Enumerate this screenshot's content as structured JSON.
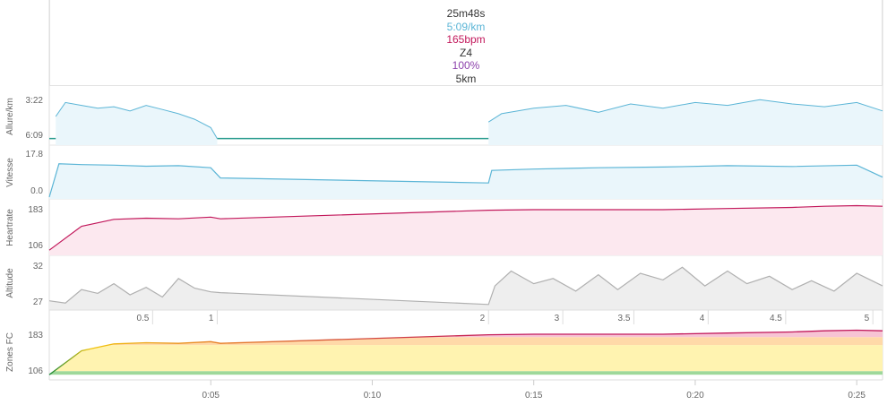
{
  "summary": {
    "duration": "25m48s",
    "pace": "5:09/km",
    "heartrate": "165bpm",
    "zone": "Z4",
    "percent": "100%",
    "distance": "5km"
  },
  "colors": {
    "pace": "#5bb5d6",
    "speed": "#5bb5d6",
    "heartrate": "#c2185b",
    "altitude": "#b0b0b0",
    "percent": "#8e44ad",
    "zone_line": "#c2185b",
    "grid": "#e5e5e5"
  },
  "chart_data": [
    {
      "type": "line",
      "ylabel": "Allure/km",
      "yticks": [
        "3:22",
        "6:09"
      ],
      "x_unit": "minutes",
      "segments": [
        {
          "x": [
            0.2,
            0.5,
            1,
            1.5,
            2,
            2.5,
            3,
            3.5,
            4,
            4.5,
            5,
            5.2
          ],
          "y": [
            290,
            240,
            250,
            260,
            255,
            270,
            250,
            265,
            280,
            300,
            330,
            369
          ]
        },
        {
          "x": [
            13.6,
            14,
            15,
            16,
            17,
            18,
            19,
            20,
            21,
            22,
            23,
            24,
            25,
            25.8
          ],
          "y": [
            310,
            280,
            260,
            250,
            275,
            245,
            260,
            240,
            250,
            230,
            245,
            255,
            240,
            270
          ]
        }
      ]
    },
    {
      "type": "area",
      "ylabel": "Vitesse",
      "yticks": [
        "17.8",
        "0.0"
      ],
      "x": [
        0,
        0.3,
        1,
        2,
        3,
        4,
        5,
        5.3,
        13.6,
        13.7,
        15,
        17,
        19,
        21,
        23,
        25,
        25.8
      ],
      "y": [
        0,
        12.5,
        12.2,
        12.0,
        11.6,
        11.8,
        11.0,
        7.2,
        5.3,
        10.0,
        10.5,
        11.0,
        11.3,
        11.8,
        11.5,
        12.0,
        7.5
      ],
      "ylim": [
        0,
        17.8
      ]
    },
    {
      "type": "area",
      "ylabel": "Heartrate",
      "yticks": [
        "183",
        "106"
      ],
      "x": [
        0,
        1,
        2,
        3,
        4,
        5,
        5.3,
        13.6,
        15,
        17,
        19,
        21,
        23,
        24,
        25,
        25.8
      ],
      "y": [
        106,
        148,
        160,
        162,
        161,
        164,
        161,
        176,
        177,
        177,
        177,
        179,
        181,
        183,
        184,
        183
      ],
      "ylim": [
        100,
        188
      ]
    },
    {
      "type": "area",
      "ylabel": "Altitude",
      "yticks": [
        "32",
        "27"
      ],
      "x": [
        0,
        0.5,
        1,
        1.5,
        2,
        2.5,
        3,
        3.5,
        4,
        4.5,
        5,
        5.3,
        13.6,
        13.8,
        14.3,
        15,
        15.6,
        16.3,
        17,
        17.6,
        18.3,
        19,
        19.6,
        20.3,
        21,
        21.6,
        22.3,
        23,
        23.6,
        24.3,
        25,
        25.8
      ],
      "y": [
        27.5,
        27.2,
        29.0,
        28.5,
        29.8,
        28.3,
        29.3,
        28.0,
        30.5,
        29.2,
        28.7,
        28.6,
        27.0,
        29.5,
        31.5,
        29.8,
        30.5,
        28.8,
        31.0,
        29.0,
        31.2,
        30.3,
        32.0,
        29.5,
        31.5,
        29.8,
        30.8,
        29.0,
        30.2,
        28.8,
        31.2,
        29.5
      ],
      "ylim": [
        26.5,
        33
      ]
    },
    {
      "type": "line",
      "ylabel": "Zones FC",
      "yticks": [
        "183",
        "106"
      ],
      "x": [
        0,
        1,
        2,
        3,
        4,
        5,
        5.3,
        13.6,
        15,
        17,
        19,
        21,
        23,
        24,
        25,
        25.8
      ],
      "y": [
        106,
        148,
        160,
        162,
        161,
        164,
        161,
        176,
        177,
        177,
        177,
        179,
        181,
        183,
        184,
        183
      ],
      "ylim": [
        100,
        188
      ]
    }
  ],
  "distance_axis": {
    "ticks": [
      "0.5",
      "1",
      "2",
      "3",
      "3.5",
      "4",
      "4.5",
      "5"
    ],
    "tick_minutes": [
      3.2,
      5.2,
      13.6,
      15.9,
      18.1,
      20.4,
      22.8,
      25.5
    ]
  },
  "time_axis": {
    "ticks": [
      "0:05",
      "0:10",
      "0:15",
      "0:20",
      "0:25"
    ],
    "tick_minutes": [
      5,
      10,
      15,
      20,
      25
    ],
    "x_max_minutes": 25.8
  }
}
